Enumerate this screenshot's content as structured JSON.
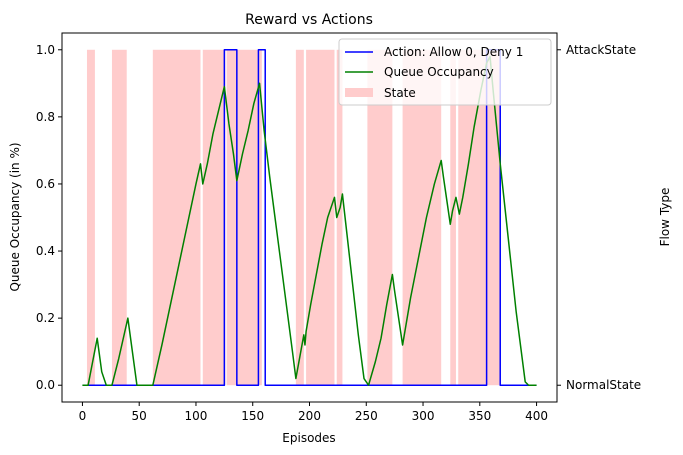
{
  "chart_data": {
    "type": "line",
    "title": "Reward vs Actions",
    "xlabel": "Episodes",
    "ylabel": "Queue Occupancy (in %)",
    "y2label": "Flow Type",
    "xlim": [
      -18,
      418
    ],
    "ylim": [
      -0.05,
      1.05
    ],
    "xticks": [
      0,
      50,
      100,
      150,
      200,
      250,
      300,
      350,
      400
    ],
    "yticks": [
      0.0,
      0.2,
      0.4,
      0.6,
      0.8,
      1.0
    ],
    "y2ticks": [
      {
        "value": 0,
        "label": "NormalState"
      },
      {
        "value": 1,
        "label": "AttackState"
      }
    ],
    "grid": false,
    "legend_position": "top-right",
    "state_spans": [
      [
        4,
        11
      ],
      [
        26,
        39
      ],
      [
        62,
        104
      ],
      [
        106,
        126
      ],
      [
        127,
        158
      ],
      [
        188,
        195
      ],
      [
        197,
        222
      ],
      [
        224,
        229
      ],
      [
        251,
        273
      ],
      [
        282,
        316
      ],
      [
        324,
        329
      ],
      [
        331,
        368
      ]
    ],
    "series": [
      {
        "name": "Action: Allow 0, Deny 1",
        "kind": "line",
        "color": "#0000ff",
        "x": [
          0,
          125,
          125,
          136,
          136,
          155,
          155,
          161,
          161,
          356,
          356,
          368,
          368,
          400
        ],
        "y": [
          0,
          0,
          1,
          1,
          0,
          0,
          1,
          1,
          0,
          0,
          1,
          1,
          0,
          0
        ]
      },
      {
        "name": "Queue Occupancy",
        "kind": "line",
        "color": "#008000",
        "x": [
          0,
          5,
          13,
          17,
          21,
          26,
          32,
          40,
          48,
          61,
          62,
          70,
          80,
          90,
          100,
          104,
          106,
          110,
          115,
          120,
          125,
          129,
          133,
          136,
          141,
          146,
          151,
          156,
          160,
          165,
          170,
          175,
          180,
          185,
          188,
          195,
          196,
          197,
          201,
          206,
          211,
          216,
          221,
          222,
          224,
          227,
          229,
          233,
          238,
          243,
          248,
          252,
          258,
          263,
          268,
          273,
          275,
          282,
          289,
          296,
          303,
          310,
          316,
          318,
          324,
          326,
          329,
          332,
          335,
          340,
          345,
          351,
          356,
          359,
          362,
          368,
          375,
          382,
          390,
          393,
          400
        ],
        "y": [
          0,
          0,
          0.14,
          0.04,
          0,
          0,
          0.08,
          0.2,
          0,
          0,
          0,
          0.12,
          0.28,
          0.44,
          0.6,
          0.66,
          0.6,
          0.66,
          0.75,
          0.82,
          0.89,
          0.78,
          0.69,
          0.61,
          0.69,
          0.76,
          0.84,
          0.9,
          0.76,
          0.62,
          0.49,
          0.36,
          0.23,
          0.1,
          0.02,
          0.15,
          0.12,
          0.16,
          0.24,
          0.33,
          0.42,
          0.5,
          0.55,
          0.56,
          0.5,
          0.53,
          0.57,
          0.45,
          0.3,
          0.15,
          0.02,
          0,
          0.07,
          0.14,
          0.24,
          0.33,
          0.28,
          0.12,
          0.26,
          0.38,
          0.5,
          0.6,
          0.67,
          0.62,
          0.48,
          0.52,
          0.56,
          0.51,
          0.56,
          0.66,
          0.77,
          0.88,
          0.96,
          0.98,
          0.87,
          0.66,
          0.44,
          0.22,
          0.01,
          0,
          0
        ]
      },
      {
        "name": "State",
        "kind": "span",
        "color": "#ffcccc"
      }
    ]
  }
}
